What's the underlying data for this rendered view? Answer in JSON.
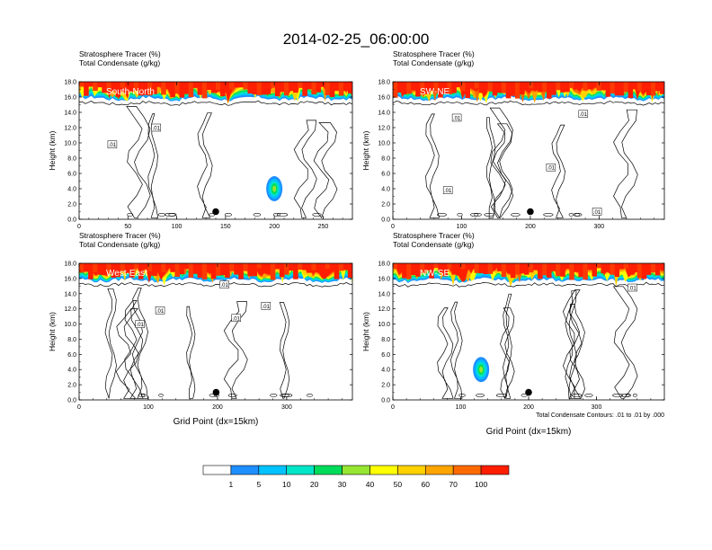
{
  "figure": {
    "title": "2014-02-25_06:00:00",
    "contour_note": "Total Condensate Contours: .01 to .01 by .000"
  },
  "colorbar": {
    "colors": [
      "#ffffff",
      "#1e8fff",
      "#00c3ff",
      "#00e6c8",
      "#00dc5a",
      "#96e632",
      "#ffff00",
      "#ffd200",
      "#ffa500",
      "#ff6a00",
      "#ff1e00"
    ],
    "labels": [
      "1",
      "5",
      "10",
      "20",
      "30",
      "40",
      "50",
      "60",
      "70",
      "100"
    ]
  },
  "chart_data": [
    {
      "type": "heatmap",
      "panel": "South-North",
      "title": "Stratosphere Tracer   (%)",
      "subtitle": "Total Condensate   (g/kg)",
      "xlabel": "",
      "ylabel": "Height (km)",
      "xlim": [
        0,
        280
      ],
      "ylim": [
        0,
        18
      ],
      "x_ticks": [
        0,
        50,
        100,
        150,
        200,
        250
      ],
      "y_ticks": [
        "0.0",
        "2.0",
        "4.0",
        "6.0",
        "8.0",
        "10.0",
        "12.0",
        "14.0",
        "16.0",
        "18.0"
      ],
      "contour_labels": [
        {
          "text": ".01",
          "x": 34,
          "y": 9.8
        },
        {
          "text": ".01",
          "x": 79,
          "y": 12.0
        }
      ],
      "marker": {
        "x": 140,
        "y": 1.0
      },
      "tracer_base_km": 15.5,
      "convective_cell": {
        "x": 200,
        "y": 4.0
      }
    },
    {
      "type": "heatmap",
      "panel": "SW-NE",
      "title": "Stratosphere Tracer   (%)",
      "subtitle": "Total Condensate   (g/kg)",
      "xlabel": "",
      "ylabel": "Height (km)",
      "xlim": [
        0,
        395
      ],
      "ylim": [
        0,
        18
      ],
      "x_ticks": [
        0,
        100,
        200,
        300
      ],
      "y_ticks": [
        "0.0",
        "2.0",
        "4.0",
        "6.0",
        "8.0",
        "10.0",
        "12.0",
        "14.0",
        "16.0",
        "18.0"
      ],
      "contour_labels": [
        {
          "text": ".01",
          "x": 93,
          "y": 13.3
        },
        {
          "text": ".01",
          "x": 277,
          "y": 13.8
        },
        {
          "text": ".01",
          "x": 230,
          "y": 6.8
        },
        {
          "text": ".01",
          "x": 80,
          "y": 3.8
        },
        {
          "text": ".01",
          "x": 297,
          "y": 1.0
        }
      ],
      "marker": {
        "x": 200,
        "y": 1.0
      },
      "tracer_base_km": 15.5
    },
    {
      "type": "heatmap",
      "panel": "West-East",
      "title": "Stratosphere Tracer   (%)",
      "subtitle": "Total Condensate   (g/kg)",
      "xlabel": "Grid Point (dx=15km)",
      "ylabel": "Height (km)",
      "xlim": [
        0,
        395
      ],
      "ylim": [
        0,
        18
      ],
      "x_ticks": [
        0,
        100,
        200,
        300
      ],
      "y_ticks": [
        "0.0",
        "2.0",
        "4.0",
        "6.0",
        "8.0",
        "10.0",
        "12.0",
        "14.0",
        "16.0",
        "18.0"
      ],
      "contour_labels": [
        {
          "text": ".01",
          "x": 117,
          "y": 11.8
        },
        {
          "text": ".01",
          "x": 88,
          "y": 10.0
        },
        {
          "text": ".01",
          "x": 210,
          "y": 15.2
        },
        {
          "text": ".01",
          "x": 227,
          "y": 10.8
        },
        {
          "text": ".01",
          "x": 270,
          "y": 12.4
        }
      ],
      "marker": {
        "x": 198,
        "y": 1.0
      },
      "tracer_base_km": 15.5
    },
    {
      "type": "heatmap",
      "panel": "NW-SE",
      "title": "Stratosphere Tracer   (%)",
      "subtitle": "Total Condensate   (g/kg)",
      "xlabel": "Grid Point (dx=15km)",
      "ylabel": "Height (km)",
      "xlim": [
        0,
        400
      ],
      "ylim": [
        0,
        18
      ],
      "x_ticks": [
        0,
        100,
        200,
        300
      ],
      "y_ticks": [
        "0.0",
        "2.0",
        "4.0",
        "6.0",
        "8.0",
        "10.0",
        "12.0",
        "14.0",
        "16.0",
        "18.0"
      ],
      "contour_labels": [
        {
          "text": ".01",
          "x": 353,
          "y": 14.8
        }
      ],
      "marker": {
        "x": 200,
        "y": 1.0
      },
      "tracer_base_km": 15.5,
      "convective_cell": {
        "x": 130,
        "y": 4.0
      }
    }
  ]
}
